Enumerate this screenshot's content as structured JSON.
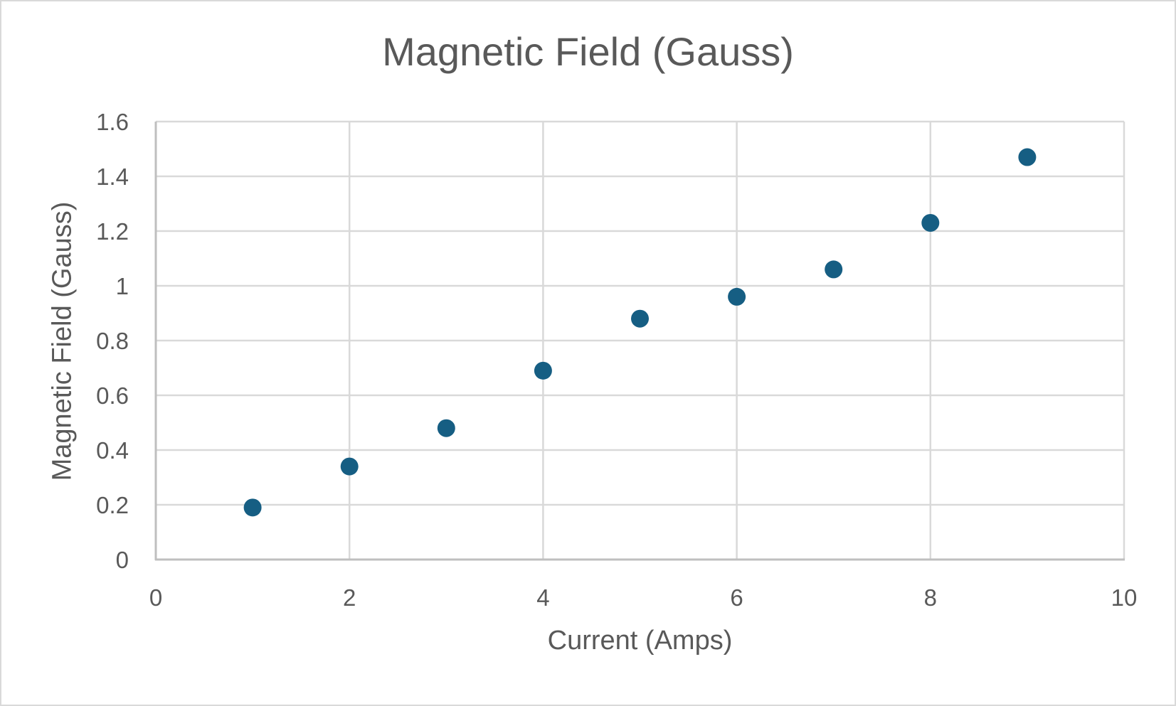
{
  "chart_data": {
    "type": "scatter",
    "title": "Magnetic Field (Gauss)",
    "xlabel": "Current (Amps)",
    "ylabel": "Magnetic Field (Gauss)",
    "xlim": [
      0,
      10
    ],
    "ylim": [
      0,
      1.6
    ],
    "x_ticks": [
      "0",
      "2",
      "4",
      "6",
      "8",
      "10"
    ],
    "y_ticks": [
      "0",
      "0.2",
      "0.4",
      "0.6",
      "0.8",
      "1",
      "1.2",
      "1.4",
      "1.6"
    ],
    "grid": true,
    "legend": null,
    "series": [
      {
        "name": "Magnetic Field (Gauss)",
        "color": "#165E83",
        "x": [
          1,
          2,
          3,
          4,
          5,
          6,
          7,
          8,
          9
        ],
        "y": [
          0.19,
          0.34,
          0.48,
          0.69,
          0.88,
          0.96,
          1.06,
          1.23,
          1.47
        ]
      }
    ]
  },
  "colors": {
    "marker": "#165E83",
    "grid": "#D9D9D9",
    "axis": "#BFBFBF",
    "text": "#595959",
    "border": "#D9D9D9"
  }
}
